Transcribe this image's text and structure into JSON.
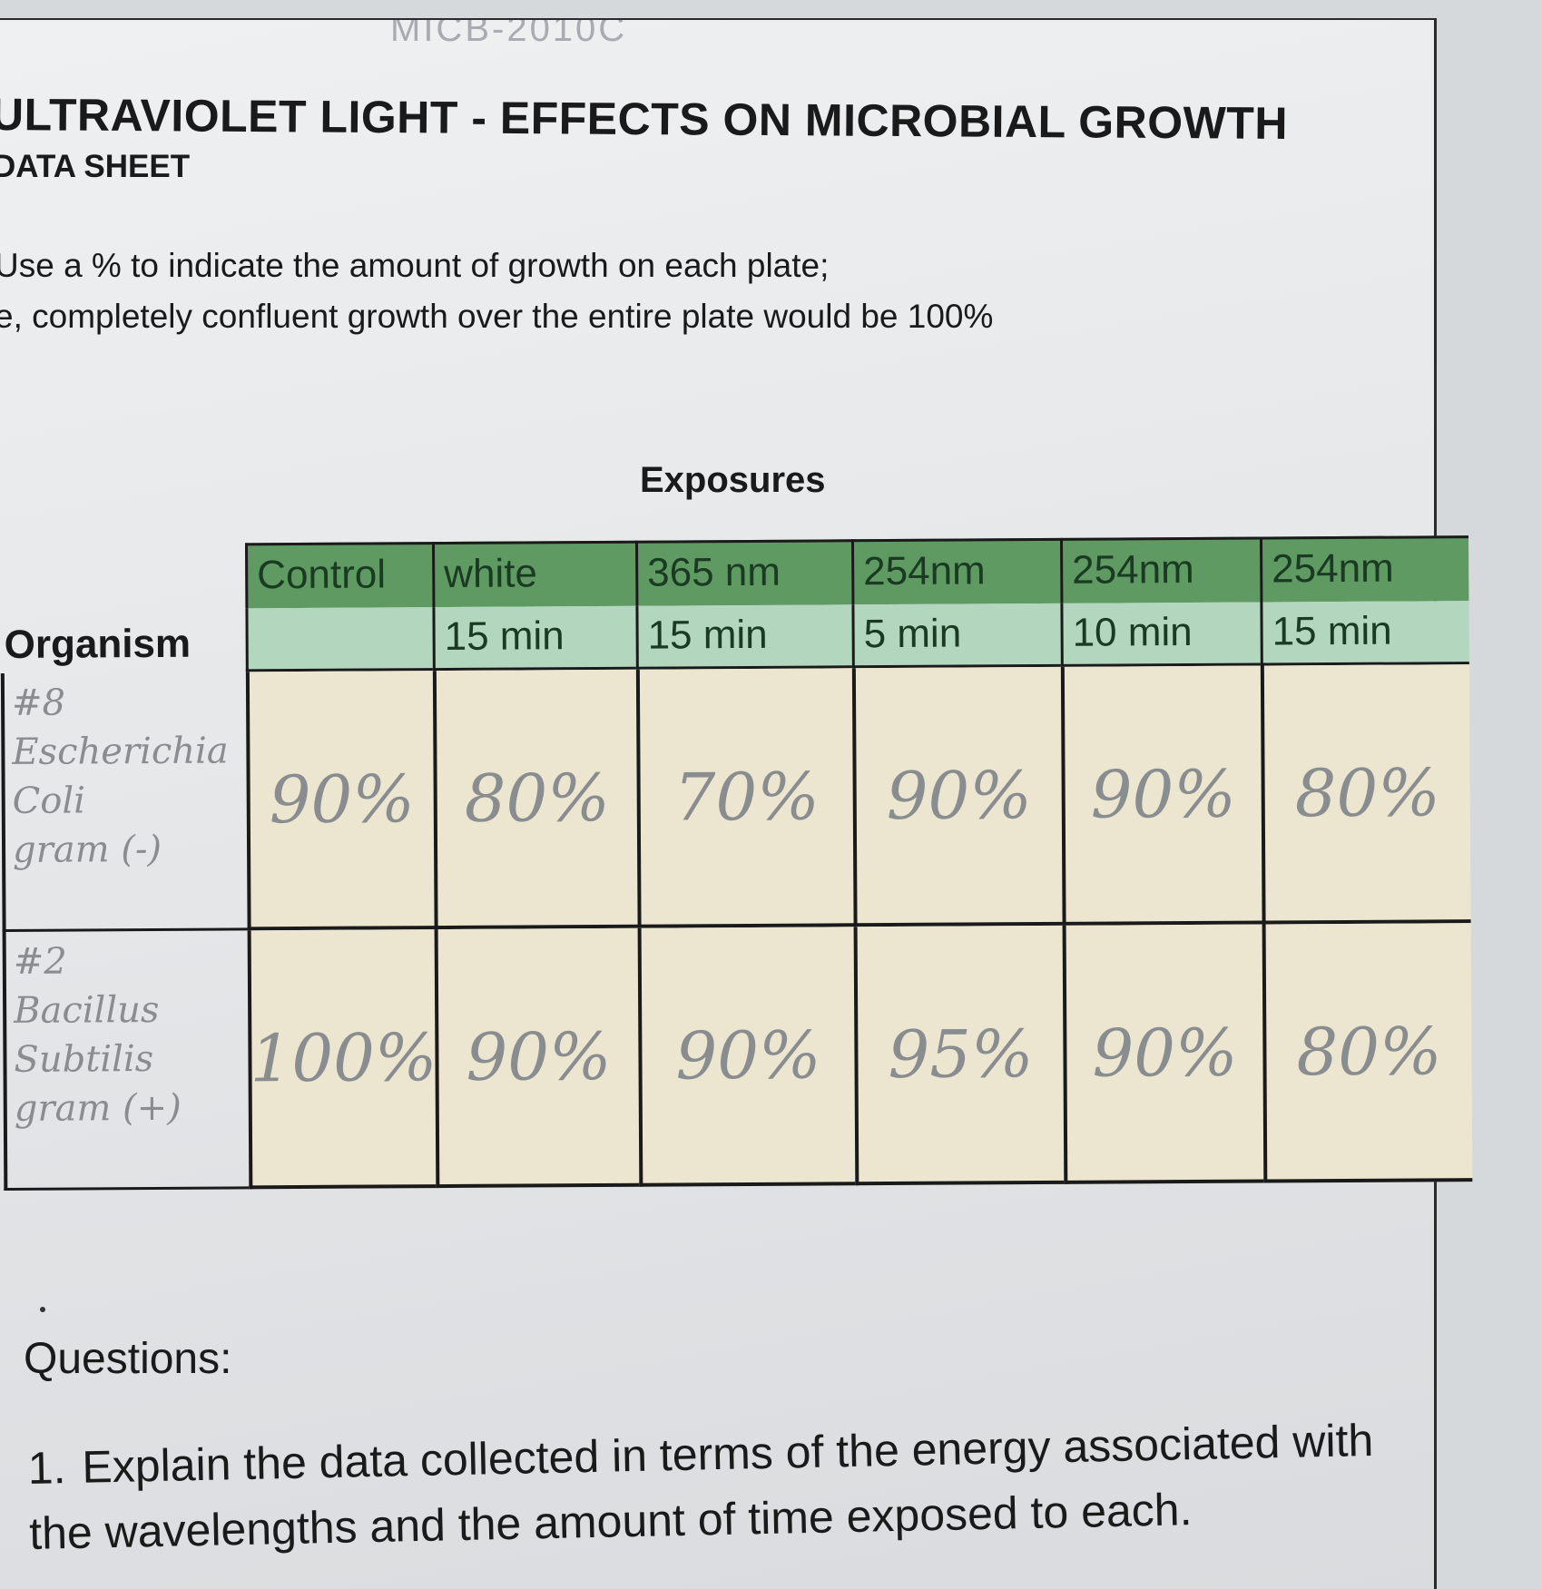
{
  "header": {
    "scribble": "MICB-2010C",
    "title": "ULTRAVIOLET LIGHT - EFFECTS ON MICROBIAL GROWTH",
    "subtitle": "DATA SHEET"
  },
  "instructions": {
    "line1": "Use a % to indicate the amount of growth on each plate;",
    "line2": "e, completely confluent growth over the entire plate would be 100%"
  },
  "table": {
    "caption": "Exposures",
    "organism_header": "Organism",
    "columns": [
      {
        "top": "Control",
        "bottom": ""
      },
      {
        "top": "white",
        "bottom": "15 min"
      },
      {
        "top": "365 nm",
        "bottom": "15 min"
      },
      {
        "top": "254nm",
        "bottom": "5 min"
      },
      {
        "top": "254nm",
        "bottom": "10 min"
      },
      {
        "top": "254nm",
        "bottom": "15 min"
      }
    ],
    "rows": [
      {
        "organism": "#8\nEscherichia\nColi\ngram (-)",
        "values": [
          "90%",
          "80%",
          "70%",
          "90%",
          "90%",
          "80%"
        ]
      },
      {
        "organism": "#2\nBacillus\nSubtilis\ngram (+)",
        "values": [
          "100%",
          "90%",
          "90%",
          "95%",
          "90%",
          "80%"
        ]
      }
    ]
  },
  "questions": {
    "heading": "Questions:",
    "q1_number": "1.",
    "q1_text": "Explain the data collected in terms of the energy associated with the wavelengths and the amount of time exposed to each."
  }
}
